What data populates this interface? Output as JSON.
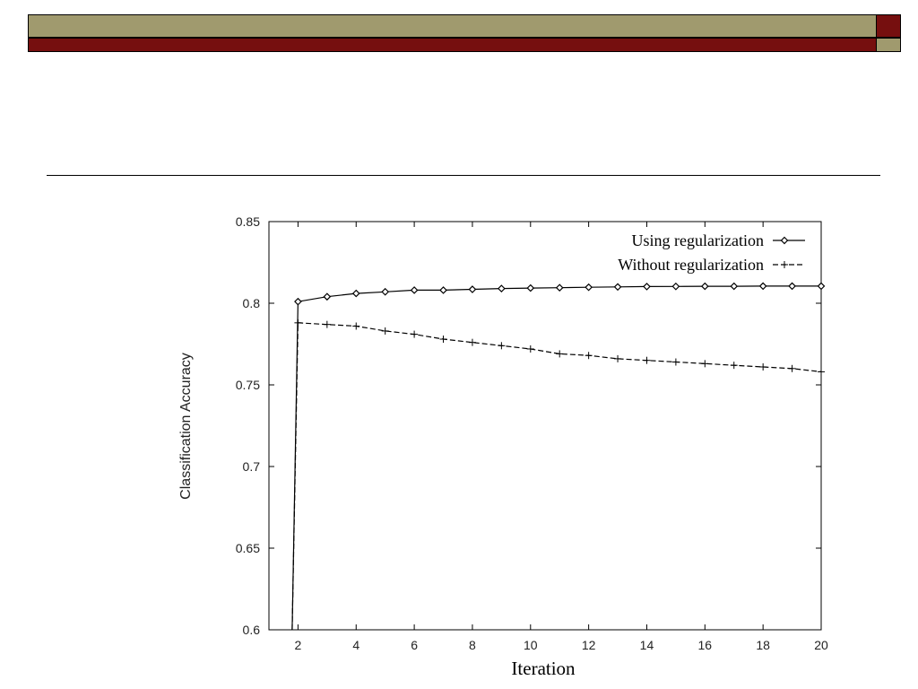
{
  "theme": {
    "olive": "#a09a6e",
    "maroon": "#760f0f",
    "line_color": "#000000"
  },
  "chart_data": {
    "type": "line",
    "title": "",
    "xlabel": "Iteration",
    "ylabel": "Classification Accuracy",
    "xlim": [
      1,
      20
    ],
    "ylim": [
      0.6,
      0.85
    ],
    "x_ticks": [
      2,
      4,
      6,
      8,
      10,
      12,
      14,
      16,
      18,
      20
    ],
    "y_ticks": [
      0.6,
      0.65,
      0.7,
      0.75,
      0.8,
      0.85
    ],
    "y_tick_labels": [
      "0.6",
      "0.65",
      "0.7",
      "0.75",
      "0.8",
      "0.85"
    ],
    "legend_position": "top-right",
    "grid": false,
    "series": [
      {
        "name": "Using regularization",
        "marker": "diamond",
        "line_style": "solid",
        "x": [
          1.8,
          2,
          3,
          4,
          5,
          6,
          7,
          8,
          9,
          10,
          11,
          12,
          13,
          14,
          15,
          16,
          17,
          18,
          19,
          20
        ],
        "y": [
          0.6,
          0.801,
          0.804,
          0.806,
          0.807,
          0.808,
          0.808,
          0.8085,
          0.809,
          0.8093,
          0.8095,
          0.8098,
          0.81,
          0.8102,
          0.8103,
          0.8104,
          0.8104,
          0.8105,
          0.8105,
          0.8105
        ]
      },
      {
        "name": "Without regularization",
        "marker": "plus",
        "line_style": "dashed",
        "x": [
          1.8,
          2,
          3,
          4,
          5,
          6,
          7,
          8,
          9,
          10,
          11,
          12,
          13,
          14,
          15,
          16,
          17,
          18,
          19,
          20
        ],
        "y": [
          0.6,
          0.788,
          0.787,
          0.786,
          0.783,
          0.781,
          0.778,
          0.776,
          0.774,
          0.772,
          0.769,
          0.768,
          0.766,
          0.765,
          0.764,
          0.763,
          0.762,
          0.761,
          0.76,
          0.758
        ]
      }
    ]
  }
}
